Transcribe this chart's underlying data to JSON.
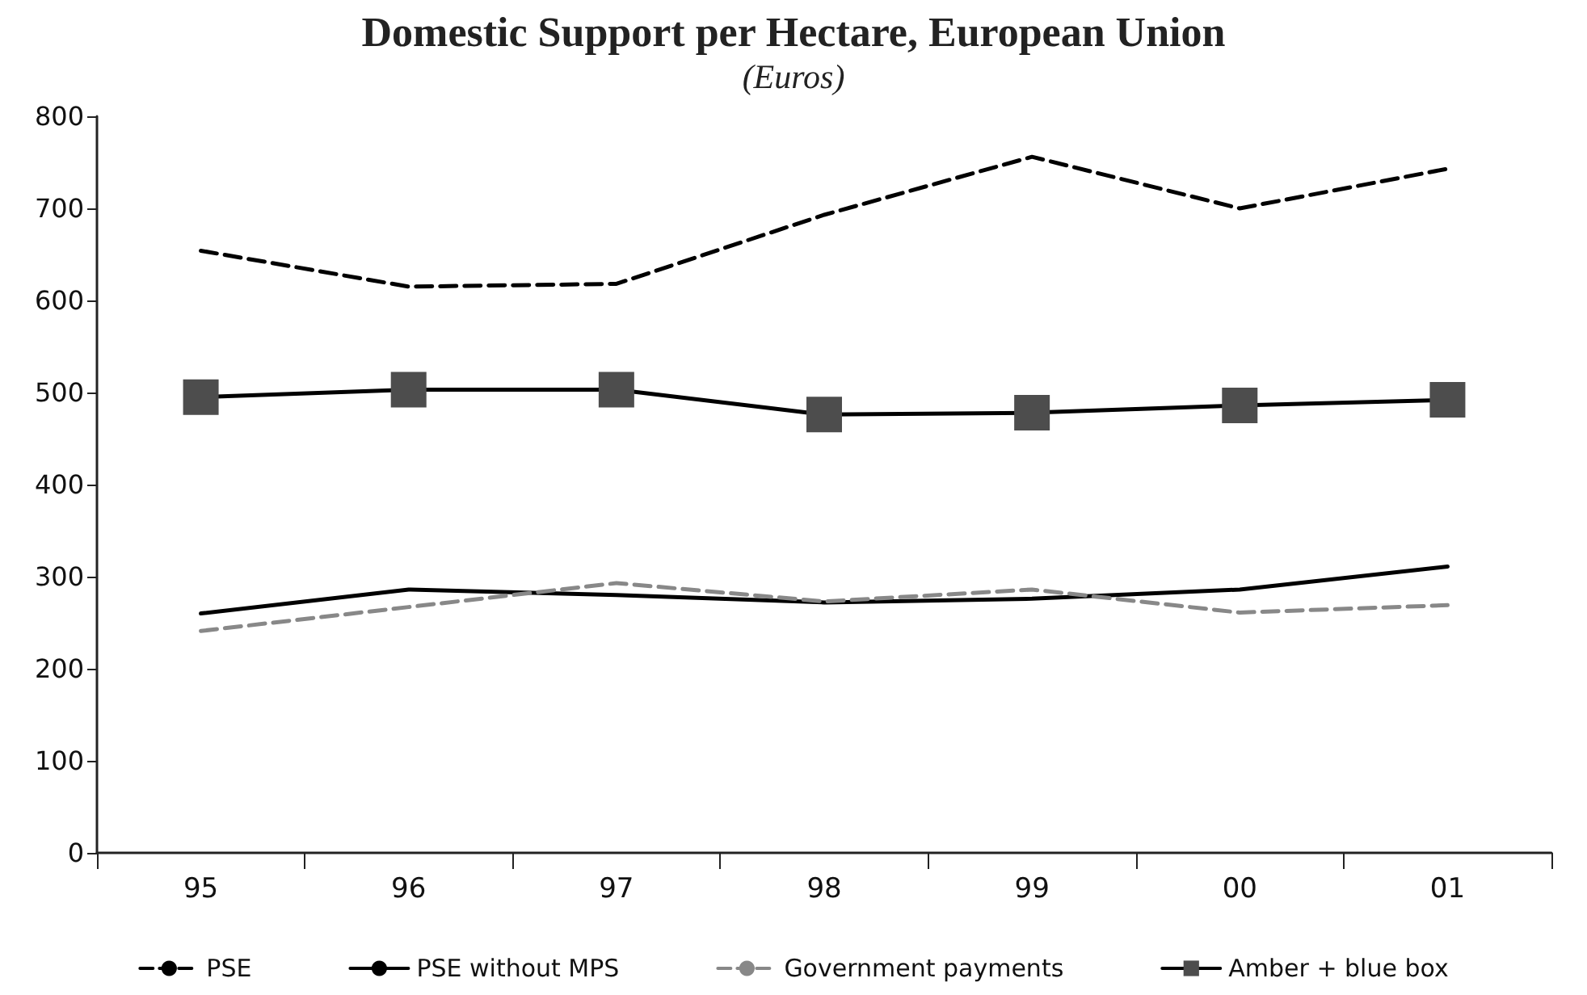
{
  "chart_data": {
    "type": "line",
    "title": "Domestic Support per Hectare, European Union",
    "subtitle": "(Euros)",
    "categories": [
      "95",
      "96",
      "97",
      "98",
      "99",
      "00",
      "01"
    ],
    "series": [
      {
        "name": "PSE",
        "color": "#000000",
        "line_style": "dashed",
        "marker": "none",
        "values": [
          654,
          615,
          618,
          693,
          756,
          700,
          743
        ]
      },
      {
        "name": "PSE without MPS",
        "color": "#000000",
        "line_style": "solid",
        "marker": "none",
        "values": [
          260,
          286,
          280,
          272,
          276,
          286,
          311
        ]
      },
      {
        "name": "Government payments",
        "color": "#888888",
        "line_style": "dashed",
        "marker": "none",
        "values": [
          241,
          267,
          293,
          273,
          286,
          261,
          269
        ]
      },
      {
        "name": "Amber + blue box",
        "color": "#000000",
        "line_style": "solid",
        "marker": "square",
        "values": [
          495,
          503,
          503,
          476,
          478,
          486,
          492
        ]
      }
    ],
    "ylim": [
      0,
      800
    ],
    "yticks": [
      0,
      100,
      200,
      300,
      400,
      500,
      600,
      700,
      800
    ],
    "grid": false,
    "legend": "bottom"
  }
}
